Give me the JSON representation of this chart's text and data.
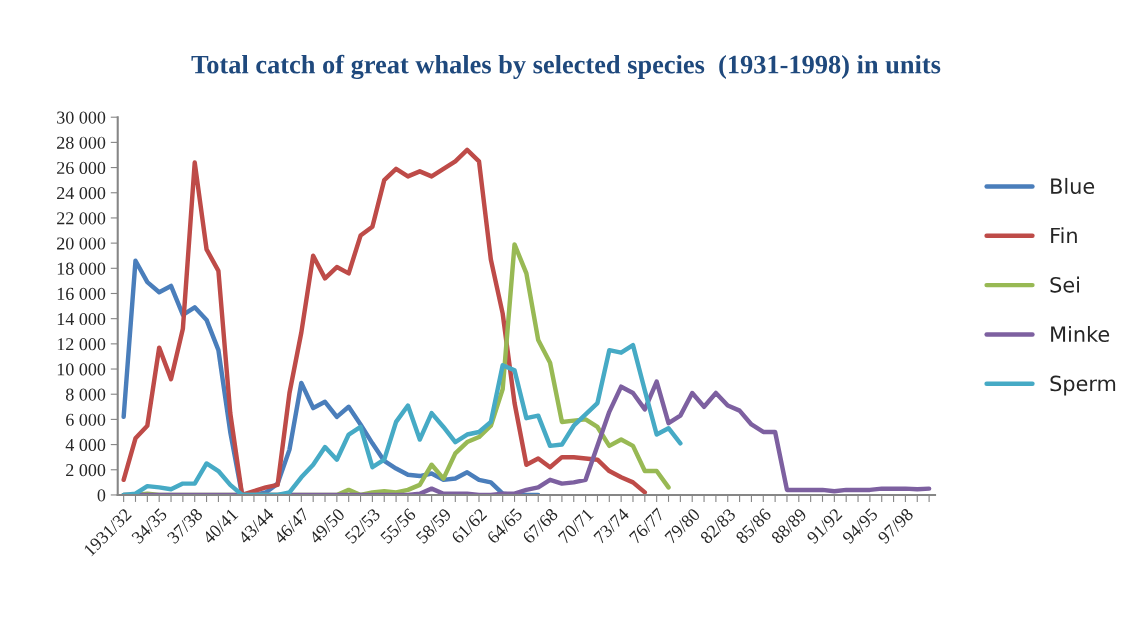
{
  "chart_data": {
    "type": "line",
    "title": "Total catch of great whales by selected species  (1931-1998) in units",
    "categories": [
      "1931/32",
      null,
      null,
      "34/35",
      null,
      null,
      "37/38",
      null,
      null,
      "40/41",
      null,
      null,
      "43/44",
      null,
      null,
      "46/47",
      null,
      null,
      "49/50",
      null,
      null,
      "52/53",
      null,
      null,
      "55/56",
      null,
      null,
      "58/59",
      null,
      null,
      "61/62",
      null,
      null,
      "64/65",
      null,
      null,
      "67/68",
      null,
      null,
      "70/71",
      null,
      null,
      "73/74",
      null,
      null,
      "76/77",
      null,
      null,
      "79/80",
      null,
      null,
      "82/83",
      null,
      null,
      "85/86",
      null,
      null,
      "88/89",
      null,
      null,
      "91/92",
      null,
      null,
      "94/95",
      null,
      null,
      "97/98",
      null,
      null
    ],
    "series": [
      {
        "name": "Blue",
        "color": "#4a7ebb",
        "values": [
          6200,
          18600,
          16900,
          16100,
          16600,
          14300,
          14900,
          13900,
          11500,
          5000,
          0,
          0,
          200,
          900,
          3600,
          8900,
          6900,
          7400,
          6200,
          7000,
          5600,
          4100,
          2700,
          2100,
          1600,
          1500,
          1700,
          1200,
          1300,
          1800,
          1200,
          1000,
          100,
          0,
          0,
          0,
          null,
          null,
          null,
          null,
          null,
          null,
          null,
          null,
          null,
          null,
          null,
          null,
          null,
          null,
          null,
          null,
          null,
          null,
          null,
          null,
          null,
          null,
          null,
          null,
          null,
          null,
          null,
          null,
          null,
          null,
          null,
          null,
          null
        ]
      },
      {
        "name": "Fin",
        "color": "#be4b48",
        "values": [
          1200,
          4500,
          5500,
          11700,
          9200,
          13200,
          26400,
          19500,
          17800,
          6500,
          0,
          300,
          600,
          800,
          8100,
          12900,
          19000,
          17200,
          18100,
          17600,
          20600,
          21300,
          25000,
          25900,
          25300,
          25700,
          25300,
          25900,
          26500,
          27400,
          26500,
          18700,
          14400,
          7300,
          2400,
          2900,
          2200,
          3000,
          3000,
          2900,
          2800,
          1900,
          1400,
          1000,
          200,
          null,
          null,
          null,
          null,
          null,
          null,
          null,
          null,
          null,
          null,
          null,
          null,
          null,
          null,
          null,
          null,
          null,
          null,
          null,
          null,
          null,
          null,
          null,
          null
        ]
      },
      {
        "name": "Sei",
        "color": "#98b954",
        "values": [
          0,
          0,
          100,
          0,
          0,
          0,
          0,
          0,
          0,
          0,
          0,
          0,
          0,
          0,
          0,
          0,
          0,
          0,
          0,
          400,
          0,
          200,
          300,
          200,
          400,
          800,
          2400,
          1300,
          3300,
          4200,
          4600,
          5500,
          8400,
          19900,
          17600,
          12300,
          10500,
          5800,
          5900,
          6000,
          5400,
          3900,
          4400,
          3900,
          1900,
          1900,
          600,
          null,
          null,
          null,
          null,
          null,
          null,
          null,
          null,
          null,
          null,
          null,
          null,
          null,
          null,
          null,
          null,
          null,
          null,
          null,
          null,
          null,
          null
        ]
      },
      {
        "name": "Minke",
        "color": "#7d60a0",
        "values": [
          0,
          0,
          0,
          0,
          0,
          0,
          0,
          0,
          0,
          0,
          0,
          0,
          0,
          0,
          0,
          0,
          0,
          0,
          0,
          0,
          0,
          0,
          0,
          0,
          0,
          100,
          500,
          100,
          100,
          100,
          0,
          0,
          100,
          100,
          400,
          600,
          1200,
          900,
          1000,
          1200,
          3900,
          6600,
          8600,
          8100,
          6800,
          9000,
          5700,
          6300,
          8100,
          7000,
          8100,
          7100,
          6700,
          5600,
          5000,
          5000,
          400,
          400,
          400,
          400,
          300,
          400,
          400,
          400,
          500,
          500,
          500,
          450,
          500
        ]
      },
      {
        "name": "Sperm",
        "color": "#46aac5",
        "values": [
          0,
          100,
          700,
          600,
          450,
          900,
          900,
          2500,
          1900,
          800,
          0,
          0,
          0,
          0,
          200,
          1400,
          2400,
          3800,
          2800,
          4800,
          5400,
          2200,
          2800,
          5800,
          7100,
          4400,
          6500,
          5400,
          4200,
          4800,
          5000,
          5800,
          10300,
          9900,
          6100,
          6300,
          3900,
          4000,
          5500,
          6400,
          7300,
          11500,
          11300,
          11900,
          8300,
          4800,
          5300,
          4100,
          null,
          null,
          null,
          null,
          null,
          null,
          null,
          null,
          null,
          null,
          null,
          null,
          null,
          null,
          null,
          null,
          null,
          null,
          null,
          null,
          null
        ]
      }
    ],
    "ylim": [
      0,
      30000
    ],
    "yticks": [
      {
        "value": 0,
        "label": "0"
      },
      {
        "value": 2000,
        "label": "2 000"
      },
      {
        "value": 4000,
        "label": "4 000"
      },
      {
        "value": 6000,
        "label": "6 000"
      },
      {
        "value": 8000,
        "label": "8 000"
      },
      {
        "value": 10000,
        "label": "10 000"
      },
      {
        "value": 12000,
        "label": "12 000"
      },
      {
        "value": 14000,
        "label": "14 000"
      },
      {
        "value": 16000,
        "label": "16 000"
      },
      {
        "value": 18000,
        "label": "18 000"
      },
      {
        "value": 20000,
        "label": "20 000"
      },
      {
        "value": 22000,
        "label": "22 000"
      },
      {
        "value": 24000,
        "label": "24 000"
      },
      {
        "value": 26000,
        "label": "26 000"
      },
      {
        "value": 28000,
        "label": "28 000"
      },
      {
        "value": 30000,
        "label": "30 000"
      }
    ],
    "grid": false,
    "legend": "right",
    "marker": "none",
    "line_style": "solid"
  }
}
